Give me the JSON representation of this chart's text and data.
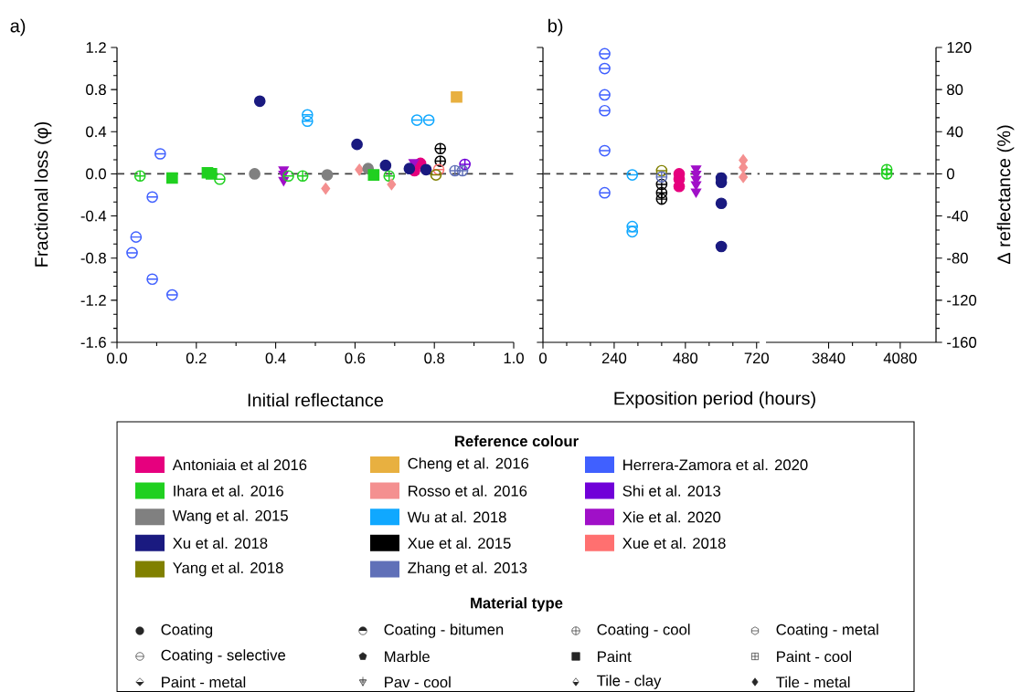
{
  "chart_data": [
    {
      "type": "scatter",
      "title": "a)",
      "xlabel": "Initial reflectance",
      "ylabel": "Fractional loss (φ)",
      "xlim": [
        0,
        1
      ],
      "ylim": [
        -1.6,
        1.2
      ],
      "xticks": [
        {
          "value": 0,
          "label": "0.0"
        },
        {
          "value": 0.2,
          "label": "0.2"
        },
        {
          "value": 0.4,
          "label": "0.4"
        },
        {
          "value": 0.6,
          "label": "0.6"
        },
        {
          "value": 0.8,
          "label": "0.8"
        },
        {
          "value": 1,
          "label": "1.0"
        }
      ],
      "yticks": [
        {
          "value": -1.6,
          "label": "-1.6"
        },
        {
          "value": -1.2,
          "label": "-1.2"
        },
        {
          "value": -0.8,
          "label": "-0.8"
        },
        {
          "value": -0.4,
          "label": "-0.4"
        },
        {
          "value": 0,
          "label": "0.0"
        },
        {
          "value": 0.4,
          "label": "0.4"
        },
        {
          "value": 0.8,
          "label": "0.8"
        },
        {
          "value": 1.2,
          "label": "1.2"
        }
      ],
      "ref_lines": [
        {
          "axis": "y",
          "value": 0,
          "color": "#404040",
          "line_style": "dashed"
        }
      ],
      "legend": "bottom",
      "legend_title": "Reference colour",
      "series": [
        {
          "name": "Antoniaia et al 2016",
          "color": "#e6007e",
          "marker": "circle",
          "x": [
            0.75,
            0.765
          ],
          "values": [
            0.03,
            0.1
          ]
        },
        {
          "name": "Cheng et al. 2016",
          "color": "#e8b040",
          "marker": "square",
          "x": [
            0.856
          ],
          "values": [
            0.73
          ]
        },
        {
          "name": "Herrera-Zamora et al. 2020",
          "color": "#4060ff",
          "x": [
            0.038,
            0.048,
            0.089,
            0.089,
            0.109,
            0.139
          ],
          "values": [
            -0.75,
            -0.6,
            -1.0,
            -0.22,
            0.19,
            -1.15
          ]
        },
        {
          "name": "Ihara et al. 2016",
          "color": "#20d020",
          "marker": "cross",
          "x": [
            0.058,
            0.468,
            0.686
          ],
          "values": [
            -0.02,
            -0.02,
            -0.02
          ]
        },
        {
          "name": "Rosso et al. 2016",
          "color": "#f49090",
          "marker": "diamond",
          "x": [
            0.526,
            0.611,
            0.692
          ],
          "values": [
            -0.14,
            0.04,
            -0.1
          ]
        },
        {
          "name": "Shi et al. 2013",
          "color": "#7000d8",
          "marker": "cross",
          "x": [
            0.877
          ],
          "values": [
            0.09
          ]
        },
        {
          "name": "Wang et al. 2015",
          "color": "#808080",
          "marker": "circle",
          "x": [
            0.347,
            0.53,
            0.633
          ],
          "values": [
            0,
            -0.01,
            0.05
          ]
        },
        {
          "name": "Wu at al. 2018",
          "color": "#10a8ff",
          "x": [
            0.48,
            0.48,
            0.756,
            0.786
          ],
          "values": [
            0.56,
            0.5,
            0.51,
            0.51
          ]
        },
        {
          "name": "Xie et al. 2020",
          "color": "#a010c8",
          "marker": "triangle",
          "x": [
            0.42,
            0.42,
            0.42,
            0.748
          ],
          "values": [
            0.04,
            0,
            -0.06,
            0.11
          ]
        },
        {
          "name": "Xu et al. 2018",
          "color": "#1a1a80",
          "marker": "circle",
          "x": [
            0.36,
            0.605,
            0.677,
            0.737,
            0.779
          ],
          "values": [
            0.69,
            0.28,
            0.08,
            0.05,
            0.04
          ]
        },
        {
          "name": "Xue et al. 2015",
          "color": "#000000",
          "marker": "cross",
          "x": [
            0.815,
            0.815
          ],
          "values": [
            0.24,
            0.12
          ]
        },
        {
          "name": "Xue et al. 2018",
          "color": "#ff7070",
          "x": [
            0.811
          ],
          "values": [
            0.04
          ]
        },
        {
          "name": "Yang et al. 2018",
          "color": "#808000",
          "x": [
            0.804
          ],
          "values": [
            -0.01
          ]
        },
        {
          "name": "Zhang et al. 2013",
          "color": "#6070b8",
          "marker": "cross",
          "x": [
            0.852,
            0.871
          ],
          "values": [
            0.03,
            0.03
          ]
        },
        {
          "color": "#20d020",
          "marker": "square",
          "x": [
            0.139,
            0.228,
            0.238,
            0.647
          ],
          "values": [
            -0.04,
            0.01,
            0,
            -0.01
          ]
        },
        {
          "color": "#20d020",
          "x": [
            0.259,
            0.432
          ],
          "values": [
            -0.05,
            -0.02
          ]
        }
      ]
    },
    {
      "type": "scatter",
      "title": "b)",
      "xlabel": "Exposition period (hours)",
      "xlim": [
        0,
        730
      ],
      "ylim": [
        -160,
        120
      ],
      "xticks": [
        0,
        240,
        480,
        720
      ],
      "yticks": [
        -160,
        -120,
        -80,
        -40,
        0,
        40,
        80,
        120
      ],
      "tick_labels": "x",
      "ref_lines": [
        {
          "axis": "y",
          "value": 0,
          "color": "#404040",
          "line_style": "dashed"
        }
      ],
      "series": [
        {
          "color": "#4060ff",
          "x": [
            208,
            208,
            208,
            208,
            208,
            208
          ],
          "values": [
            114,
            100,
            75,
            60,
            22,
            -18
          ]
        },
        {
          "color": "#10a8ff",
          "x": [
            301,
            301,
            301
          ],
          "values": [
            -1,
            -50,
            -55
          ]
        },
        {
          "color": "#000000",
          "marker": "cross",
          "x": [
            400,
            400,
            400
          ],
          "values": [
            -10,
            -18,
            -24
          ]
        },
        {
          "color": "#808000",
          "x": [
            400
          ],
          "values": [
            3
          ]
        },
        {
          "color": "#6070b8",
          "marker": "cross",
          "x": [
            400
          ],
          "values": [
            -3
          ]
        },
        {
          "color": "#e6007e",
          "marker": "circle",
          "x": [
            459,
            459,
            459
          ],
          "values": [
            0,
            -5,
            -12
          ]
        },
        {
          "color": "#a010c8",
          "marker": "triangle",
          "x": [
            516,
            516,
            516,
            516,
            516
          ],
          "values": [
            5,
            0,
            -5,
            -10,
            -17
          ]
        },
        {
          "color": "#1a1a80",
          "marker": "circle",
          "x": [
            601,
            601,
            601,
            601
          ],
          "values": [
            -4,
            -8,
            -28,
            -69
          ]
        },
        {
          "color": "#f49090",
          "marker": "diamond",
          "x": [
            675,
            675,
            675
          ],
          "values": [
            13,
            6,
            -3
          ]
        }
      ]
    },
    {
      "type": "scatter",
      "y2label": "Δ reflectance (%)",
      "xlim": [
        3630,
        4200
      ],
      "y2lim": [
        -160,
        120
      ],
      "xticks": [
        3840,
        4080
      ],
      "y2ticks": [
        -160,
        -120,
        -80,
        -40,
        0,
        40,
        80,
        120
      ],
      "ref_lines": [
        {
          "axis": "y2",
          "value": 0,
          "color": "#404040",
          "line_style": "dashed"
        }
      ],
      "series": [
        {
          "color": "#20d020",
          "marker": "cross",
          "axis": "y2",
          "x": [
            4035,
            4035
          ],
          "values": [
            4,
            0
          ]
        }
      ]
    },
    {
      "type": "other",
      "title": "Material type",
      "categories": [
        "Coating",
        "Coating - bitumen",
        "Coating - cool",
        "Coating - metal",
        "Coating - selective",
        "Marble",
        "Paint",
        "Paint - cool",
        "Paint - metal",
        "Pav - cool",
        "Tile - clay",
        "Tile - metal"
      ]
    }
  ]
}
